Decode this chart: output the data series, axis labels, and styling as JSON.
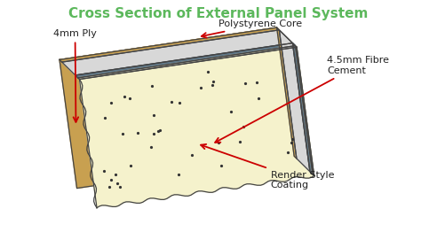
{
  "title": "Cross Section of External Panel System",
  "title_color": "#5cb85c",
  "title_fontsize": 11,
  "bg_color": "#ffffff",
  "labels": {
    "ply": "4mm Ply",
    "core": "Polystyrene Core",
    "cement": "4.5mm Fibre\nCement",
    "render": "Render Style\nCoating"
  },
  "label_color": "#222222",
  "arrow_color": "#cc0000",
  "colors": {
    "ply": "#c8a050",
    "core": "#d8d8d8",
    "cement_dark": "#607888",
    "render": "#f5f2cc",
    "outline": "#444444"
  },
  "dot_color": "#333333",
  "n_dots": 38,
  "n_waves": 9,
  "wave_amp": 0.07
}
